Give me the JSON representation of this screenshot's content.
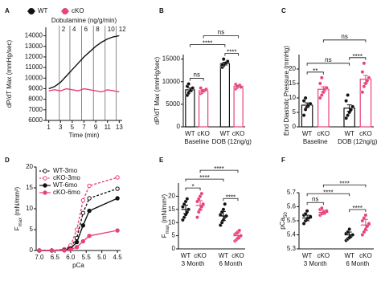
{
  "chart_data": [
    {
      "type": "line",
      "panel": "A",
      "legend": "top",
      "markers": false,
      "x": [
        1,
        2,
        3,
        4,
        5,
        6,
        7,
        8,
        9,
        10,
        11,
        12,
        13
      ],
      "series": [
        {
          "name": "WT",
          "color": "#111111",
          "values": [
            9000,
            9200,
            9600,
            10200,
            10800,
            11400,
            12000,
            12500,
            13000,
            13400,
            13700,
            13900,
            14000
          ]
        },
        {
          "name": "cKO",
          "color": "#e8427c",
          "values": [
            8800,
            8900,
            8800,
            9000,
            8900,
            8800,
            9000,
            8900,
            8800,
            8700,
            8900,
            8800,
            8700
          ]
        }
      ],
      "xlim": [
        0.5,
        13.5
      ],
      "xticks": [
        1,
        3,
        5,
        7,
        9,
        11,
        13
      ],
      "ylim": [
        6000,
        14800
      ],
      "yticks": [
        6000,
        7000,
        8000,
        9000,
        10000,
        11000,
        12000,
        13000,
        14000
      ],
      "xlabel": "Time (min)",
      "ylabel": "dP/dT Max (mmHg/sec)",
      "annotation": "Dobutamine (ng/g/min)",
      "doses": [
        2,
        4,
        6,
        8,
        10,
        12
      ],
      "dose_times": [
        2.8,
        4.6,
        6.6,
        8.6,
        10.6,
        12.5
      ]
    },
    {
      "type": "dot",
      "panel": "B",
      "bars": true,
      "categories": [
        "WT",
        "cKO",
        "WT",
        "cKO"
      ],
      "groups": [
        "Baseline",
        "DOB (12ng/g)"
      ],
      "colors": [
        "#111111",
        "#e8427c",
        "#111111",
        "#e8427c"
      ],
      "values": [
        8200,
        8000,
        14000,
        9000
      ],
      "errors": [
        400,
        200,
        300,
        200
      ],
      "points": [
        [
          7000,
          7500,
          8000,
          8200,
          8600,
          9000,
          9500
        ],
        [
          7400,
          7600,
          7900,
          8100,
          8300,
          8600,
          8000
        ],
        [
          13200,
          13600,
          14000,
          14200,
          14500,
          13800,
          15000
        ],
        [
          8400,
          8700,
          9000,
          9200,
          8800,
          9400,
          9000
        ]
      ],
      "ylim": [
        0,
        16000
      ],
      "yticks": [
        0,
        5000,
        10000,
        15000
      ],
      "ylabel": "dP/dT Max (mmHg/sec)",
      "brackets": [
        {
          "from": 0,
          "to": 1,
          "label": "ns"
        },
        {
          "from": 2,
          "to": 3,
          "label": "****"
        },
        {
          "from": 0,
          "to": 2,
          "label": "****"
        },
        {
          "from": 1,
          "to": 3,
          "label": "ns"
        }
      ]
    },
    {
      "type": "dot",
      "panel": "C",
      "bars": true,
      "categories": [
        "WT",
        "cKO",
        "WT",
        "cKO"
      ],
      "groups": [
        "Baseline",
        "DOB (12ng/g)"
      ],
      "colors": [
        "#111111",
        "#e8427c",
        "#111111",
        "#e8427c"
      ],
      "values": [
        7.5,
        13,
        6.5,
        16.5
      ],
      "errors": [
        0.8,
        0.9,
        1.1,
        1.3
      ],
      "points": [
        [
          4,
          6,
          7,
          7.5,
          8,
          9,
          10
        ],
        [
          10,
          11,
          12,
          13,
          13.5,
          15,
          17
        ],
        [
          3,
          4,
          5,
          6,
          7,
          9,
          11
        ],
        [
          12,
          14,
          15,
          16,
          17,
          19,
          22
        ]
      ],
      "ylim": [
        0,
        25
      ],
      "yticks": [
        0,
        5,
        10,
        15,
        20
      ],
      "ylabel": "End Diastolic Pressure (mmHg)",
      "brackets": [
        {
          "from": 0,
          "to": 1,
          "label": "**"
        },
        {
          "from": 2,
          "to": 3,
          "label": "****"
        },
        {
          "from": 0,
          "to": 2,
          "label": "ns"
        },
        {
          "from": 1,
          "to": 3,
          "label": "ns"
        }
      ]
    },
    {
      "type": "line",
      "panel": "D",
      "legend": "upper left",
      "markers": true,
      "x": [
        7.0,
        6.6,
        6.2,
        6.0,
        5.8,
        5.6,
        5.4,
        4.5
      ],
      "series": [
        {
          "name": "WT-3mo",
          "color": "#111111",
          "dash": true,
          "marker": "open",
          "values": [
            0,
            0,
            0.2,
            0.8,
            3,
            9,
            12.5,
            14.8
          ]
        },
        {
          "name": "cKO-3mo",
          "color": "#e8427c",
          "dash": true,
          "marker": "open",
          "values": [
            0,
            0,
            0.3,
            1.2,
            5,
            12,
            15.5,
            17.5
          ]
        },
        {
          "name": "WT-6mo",
          "color": "#111111",
          "dash": false,
          "marker": "filled",
          "values": [
            0,
            0,
            0.1,
            0.5,
            2,
            6,
            9.5,
            12.5
          ]
        },
        {
          "name": "cKO-6mo",
          "color": "#e8427c",
          "dash": false,
          "marker": "filled",
          "values": [
            0,
            0,
            0,
            0.2,
            0.8,
            2.2,
            3.5,
            4.8
          ]
        }
      ],
      "xlim": [
        7.1,
        4.4
      ],
      "xticks": [
        {
          "value": 7.0,
          "label": "7.0"
        },
        6.5,
        {
          "value": 6.0,
          "label": "6.0"
        },
        5.5,
        {
          "value": 5.0,
          "label": "5.0"
        },
        4.5
      ],
      "ylim": [
        0,
        20
      ],
      "yticks": [
        0,
        5,
        10,
        15,
        20
      ],
      "xlabel": "pCa",
      "ylabel": [
        {
          "text": "F"
        },
        {
          "text": "max",
          "sub": true
        },
        {
          "text": " (mN/mm²)"
        }
      ]
    },
    {
      "type": "dot",
      "panel": "E",
      "bars": false,
      "categories": [
        "WT",
        "cKO",
        "WT",
        "cKO"
      ],
      "groups": [
        "3 Month",
        "6 Month"
      ],
      "colors": [
        "#111111",
        "#e8427c",
        "#111111",
        "#e8427c"
      ],
      "values": [
        15,
        16.5,
        12.5,
        5
      ],
      "errors": [
        1.6,
        1.8,
        1.7,
        1.1
      ],
      "points": [
        [
          11,
          12,
          13,
          14,
          15,
          16,
          17,
          18,
          19
        ],
        [
          12,
          14,
          15,
          16,
          17,
          18,
          19,
          20,
          21
        ],
        [
          9,
          10,
          11,
          12,
          12.5,
          13,
          14,
          15,
          17
        ],
        [
          3,
          3.5,
          4,
          4.5,
          5,
          5.5,
          6,
          6.5,
          7
        ]
      ],
      "ylim": [
        0,
        25
      ],
      "yticks": [
        0,
        5,
        10,
        15,
        20
      ],
      "ylabel": [
        {
          "text": "F"
        },
        {
          "text": "max",
          "sub": true
        },
        {
          "text": " (mN/mm²)"
        }
      ],
      "brackets": [
        {
          "from": 0,
          "to": 1,
          "label": "*"
        },
        {
          "from": 2,
          "to": 3,
          "label": "****"
        },
        {
          "from": 0,
          "to": 2,
          "label": "****"
        },
        {
          "from": 1,
          "to": 3,
          "label": "****"
        }
      ]
    },
    {
      "type": "dot",
      "panel": "F",
      "bars": false,
      "categories": [
        "WT",
        "cKO",
        "WT",
        "cKO"
      ],
      "groups": [
        "3 Month",
        "6 Month"
      ],
      "colors": [
        "#111111",
        "#e8427c",
        "#111111",
        "#e8427c"
      ],
      "values": [
        5.52,
        5.56,
        5.4,
        5.47
      ],
      "errors": [
        0.02,
        0.015,
        0.02,
        0.04
      ],
      "points": [
        [
          5.48,
          5.5,
          5.51,
          5.52,
          5.53,
          5.54,
          5.55,
          5.57
        ],
        [
          5.54,
          5.55,
          5.56,
          5.56,
          5.57,
          5.58,
          5.59
        ],
        [
          5.36,
          5.37,
          5.38,
          5.39,
          5.4,
          5.41,
          5.42,
          5.44
        ],
        [
          5.4,
          5.42,
          5.44,
          5.46,
          5.48,
          5.5,
          5.52,
          5.54
        ]
      ],
      "ylim": [
        5.3,
        5.7
      ],
      "yticks": [
        5.3,
        5.4,
        5.5,
        5.6,
        5.7
      ],
      "ylabel": [
        {
          "text": "pCa"
        },
        {
          "text": "50",
          "sub": true
        }
      ],
      "brackets": [
        {
          "from": 0,
          "to": 1,
          "label": "ns"
        },
        {
          "from": 2,
          "to": 3,
          "label": "****"
        },
        {
          "from": 0,
          "to": 2,
          "label": "****"
        },
        {
          "from": 1,
          "to": 3,
          "label": "****"
        }
      ]
    }
  ]
}
